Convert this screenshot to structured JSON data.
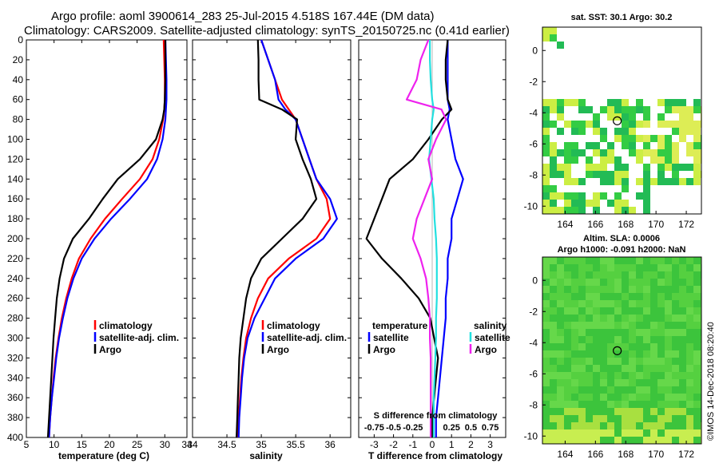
{
  "figure": {
    "title_line1": "Argo profile: aoml 3900614_283 25-Jul-2015 4.518S 167.44E (DM data)",
    "title_line2": "Climatology: CARS2009. Satellite-adjusted climatology: synTS_20150725.nc (0.41d earlier)",
    "stamp": "©IMOS 14-Dec-2018 08:20:40"
  },
  "colors": {
    "climatology": "#ff0000",
    "satellite": "#0000ff",
    "argo": "#000000",
    "sal_satellite": "#22e0e0",
    "sal_argo": "#ee22ee"
  },
  "chart_data": [
    {
      "type": "line",
      "name": "temperature",
      "xlabel": "temperature (deg C)",
      "ylabel": "",
      "xlim": [
        5,
        34
      ],
      "ylim": [
        400,
        0
      ],
      "x_ticks": [
        "5",
        "10",
        "15",
        "20",
        "25",
        "30"
      ],
      "y_ticks": [
        "0",
        "20",
        "40",
        "60",
        "80",
        "100",
        "120",
        "140",
        "160",
        "180",
        "200",
        "220",
        "240",
        "260",
        "280",
        "300",
        "320",
        "340",
        "360",
        "380",
        "400"
      ],
      "depth": [
        0,
        20,
        40,
        60,
        70,
        80,
        100,
        120,
        140,
        160,
        180,
        200,
        220,
        240,
        260,
        280,
        300,
        320,
        340,
        360,
        380,
        400
      ],
      "series": [
        {
          "name": "climatology",
          "values": [
            29.8,
            29.9,
            30.0,
            30.0,
            29.9,
            29.7,
            29.0,
            27.8,
            25.5,
            22.3,
            19.2,
            16.6,
            14.5,
            13.2,
            12.2,
            11.4,
            10.8,
            10.3,
            9.9,
            9.6,
            9.3,
            9.1
          ]
        },
        {
          "name": "satellite-adj. clim.",
          "values": [
            30.1,
            30.2,
            30.3,
            30.3,
            30.2,
            30.1,
            29.6,
            28.6,
            26.8,
            23.7,
            20.3,
            17.3,
            15.0,
            13.5,
            12.4,
            11.6,
            10.9,
            10.4,
            10.0,
            9.6,
            9.3,
            9.1
          ]
        },
        {
          "name": "Argo",
          "values": [
            30.1,
            30.1,
            30.1,
            30.0,
            29.9,
            29.6,
            28.4,
            25.5,
            21.5,
            18.8,
            16.3,
            13.4,
            11.8,
            11.0,
            10.5,
            10.2,
            9.9,
            9.7,
            9.5,
            9.3,
            9.1,
            8.9
          ]
        }
      ],
      "legend": {
        "position": "bottom-right",
        "labels": [
          "climatology",
          "satellite-adj. clim.",
          "Argo"
        ]
      }
    },
    {
      "type": "line",
      "name": "salinity",
      "xlabel": "salinity",
      "xlim": [
        34,
        36.3
      ],
      "ylim": [
        400,
        0
      ],
      "x_ticks": [
        "34",
        "34.5",
        "35",
        "35.5",
        "36"
      ],
      "depth": [
        0,
        20,
        40,
        60,
        70,
        80,
        100,
        120,
        140,
        160,
        180,
        200,
        220,
        240,
        260,
        280,
        300,
        320,
        340,
        360,
        380,
        400
      ],
      "series": [
        {
          "name": "climatology",
          "values": [
            35.0,
            35.1,
            35.2,
            35.3,
            35.4,
            35.5,
            35.6,
            35.7,
            35.8,
            35.95,
            36.0,
            35.8,
            35.4,
            35.1,
            34.95,
            34.85,
            34.78,
            34.74,
            34.71,
            34.69,
            34.67,
            34.66
          ]
        },
        {
          "name": "satellite-adj. clim.",
          "values": [
            35.0,
            35.1,
            35.2,
            35.25,
            35.35,
            35.5,
            35.6,
            35.7,
            35.8,
            36.0,
            36.1,
            35.9,
            35.5,
            35.2,
            35.05,
            34.9,
            34.8,
            34.75,
            34.72,
            34.7,
            34.68,
            34.67
          ]
        },
        {
          "name": "Argo",
          "values": [
            34.95,
            34.96,
            34.96,
            34.97,
            35.3,
            35.52,
            35.5,
            35.6,
            35.72,
            35.8,
            35.6,
            35.3,
            35.0,
            34.85,
            34.78,
            34.74,
            34.7,
            34.68,
            34.67,
            34.66,
            34.65,
            34.64
          ]
        }
      ],
      "legend": {
        "position": "bottom-right",
        "labels": [
          "climatology",
          "satellite-adj. clim.",
          "Argo"
        ]
      }
    },
    {
      "type": "line",
      "name": "differences",
      "xlabel": "T difference from climatology",
      "top_xlabel": "S difference from climatology",
      "xlim": [
        -3.8,
        3.8
      ],
      "ylim": [
        400,
        0
      ],
      "x_ticks": [
        "-3",
        "-2",
        "-1",
        "0",
        "1",
        "2",
        "3"
      ],
      "s_ticks": [
        "-0.75",
        "-0.5",
        "-0.25",
        "0",
        "0.25",
        "0.5",
        "0.75"
      ],
      "depth": [
        0,
        20,
        40,
        60,
        70,
        80,
        100,
        120,
        140,
        160,
        180,
        200,
        220,
        240,
        260,
        280,
        300,
        320,
        340,
        360,
        380,
        400
      ],
      "series": [
        {
          "name": "temperature satellite",
          "values": [
            0.8,
            0.8,
            0.8,
            0.8,
            0.9,
            0.8,
            1.0,
            1.2,
            1.6,
            1.3,
            1.0,
            1.0,
            0.8,
            0.8,
            0.7,
            0.7,
            0.6,
            0.5,
            0.4,
            0.3,
            0.2,
            0.2
          ]
        },
        {
          "name": "temperature Argo",
          "values": [
            0.8,
            0.7,
            0.7,
            0.8,
            1.0,
            0.5,
            -0.2,
            -1.0,
            -2.2,
            -2.6,
            -3.0,
            -3.4,
            -2.6,
            -1.6,
            -0.7,
            -0.1,
            0.1,
            0.3,
            0.2,
            0.1,
            0.0,
            0.0
          ]
        },
        {
          "name": "salinity satellite",
          "values": [
            -0.03,
            -0.03,
            -0.02,
            0.0,
            0.02,
            0.0,
            -0.02,
            -0.04,
            -0.01,
            0.02,
            0.03,
            0.05,
            0.06,
            0.06,
            0.06,
            0.05,
            0.05,
            0.04,
            0.03,
            0.02,
            0.02,
            0.02
          ]
        },
        {
          "name": "salinity Argo",
          "values": [
            -0.05,
            -0.15,
            -0.2,
            -0.33,
            0.12,
            0.18,
            0.05,
            -0.05,
            0.0,
            -0.1,
            -0.2,
            -0.25,
            -0.15,
            -0.08,
            -0.05,
            -0.03,
            -0.03,
            -0.02,
            -0.02,
            -0.02,
            -0.02,
            -0.02
          ]
        }
      ],
      "legend": {
        "temperature_title": "temperature",
        "salinity_title": "salinity",
        "temperature_labels": [
          "satellite",
          "Argo"
        ],
        "salinity_labels": [
          "satellite",
          "Argo"
        ]
      }
    }
  ],
  "map_sst": {
    "title": "sat. SST: 30.1 Argo: 30.2",
    "x_ticks": [
      "164",
      "166",
      "168",
      "170",
      "172"
    ],
    "y_ticks": [
      "0",
      "-2",
      "-4",
      "-6",
      "-8",
      "-10"
    ],
    "xlim": [
      162.5,
      173
    ],
    "ylim": [
      -10.5,
      1.5
    ],
    "argo_lon": 167.44,
    "argo_lat": -4.518
  },
  "map_sla": {
    "title_line1": "Altim. SLA: 0.0006",
    "title_line2": "Argo h1000: -0.091 h2000: NaN",
    "x_ticks": [
      "164",
      "166",
      "168",
      "170",
      "172"
    ],
    "y_ticks": [
      "0",
      "-2",
      "-4",
      "-6",
      "-8",
      "-10"
    ],
    "xlim": [
      162.5,
      173
    ],
    "ylim": [
      -10.5,
      1.5
    ],
    "argo_lon": 167.44,
    "argo_lat": -4.518
  }
}
